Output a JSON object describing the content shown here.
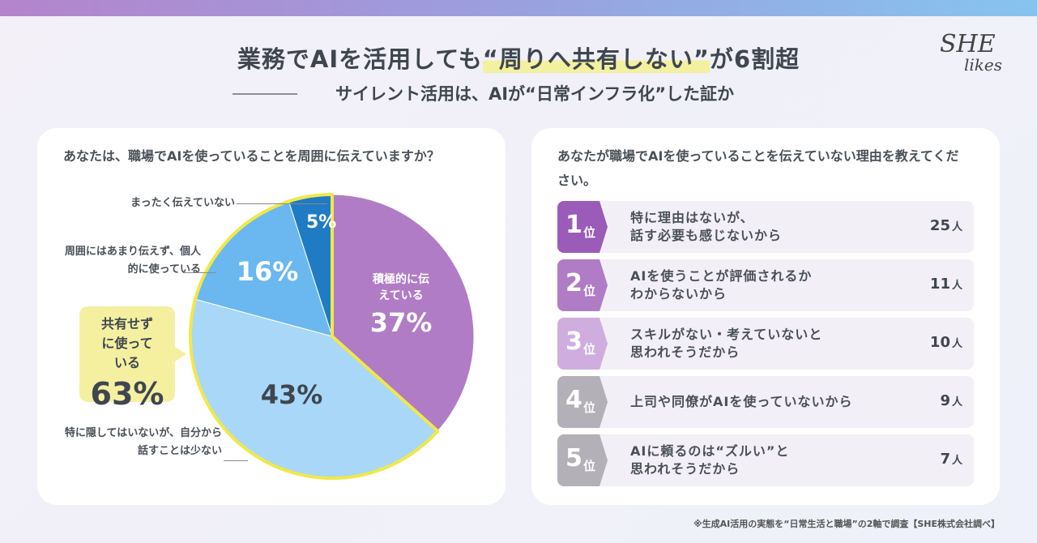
{
  "header": {
    "title_pre": "業務でAIを活用しても",
    "title_highlight": "“周りへ共有しない”",
    "title_post": "が6割超",
    "subtitle": "サイレント活用は、AIが“日常インフラ化”した証か",
    "logo_top": "SHE",
    "logo_bottom": "likes"
  },
  "colors": {
    "purple": "#b07cc6",
    "light_blue": "#a9d7f7",
    "blue": "#6ab8ef",
    "dark_blue": "#1f7cc4",
    "highlight_yellow": "#f0e84a"
  },
  "chart_data": [
    {
      "type": "pie",
      "title": "あなたは、職場でAIを使っていることを周囲に伝えていますか？",
      "slices": [
        {
          "label": "積極的に伝えている",
          "value": 37,
          "display": "37%"
        },
        {
          "label": "特に隠してはいないが、自分から話すことは少ない",
          "value": 43,
          "display": "43%"
        },
        {
          "label": "周囲にはあまり伝えず、個人的に使っている",
          "value": 16,
          "display": "16%"
        },
        {
          "label": "まったく伝えていない",
          "value": 5,
          "display": "5%"
        }
      ],
      "callout": {
        "label": "共有せずに使っている",
        "value": "63%"
      }
    },
    {
      "type": "table",
      "title": "あなたが職場でAIを使っていることを伝えていない理由を教えてください。",
      "rows": [
        {
          "rank": "1",
          "unit": "位",
          "line1": "特に理由はないが、",
          "line2": "話す必要も感じないから",
          "count": "25",
          "count_unit": "人",
          "color": "#9a5cb8"
        },
        {
          "rank": "2",
          "unit": "位",
          "line1": "AIを使うことが評価されるか",
          "line2": "わからないから",
          "count": "11",
          "count_unit": "人",
          "color": "#b07cc6"
        },
        {
          "rank": "3",
          "unit": "位",
          "line1": "スキルがない・考えていないと",
          "line2": "思われそうだから",
          "count": "10",
          "count_unit": "人",
          "color": "#cfaedf"
        },
        {
          "rank": "4",
          "unit": "位",
          "line1": "上司や同僚がAIを使っていないから",
          "line2": "",
          "count": "9",
          "count_unit": "人",
          "color": "#b4b0b8"
        },
        {
          "rank": "5",
          "unit": "位",
          "line1": "AIに頼るのは“ズルい”と",
          "line2": "思われそうだから",
          "count": "7",
          "count_unit": "人",
          "color": "#b4b0b8"
        }
      ]
    }
  ],
  "footer": "※生成AI活用の実態を“日常生活と職場”の2軸で調査【SHE株式会社調べ】"
}
